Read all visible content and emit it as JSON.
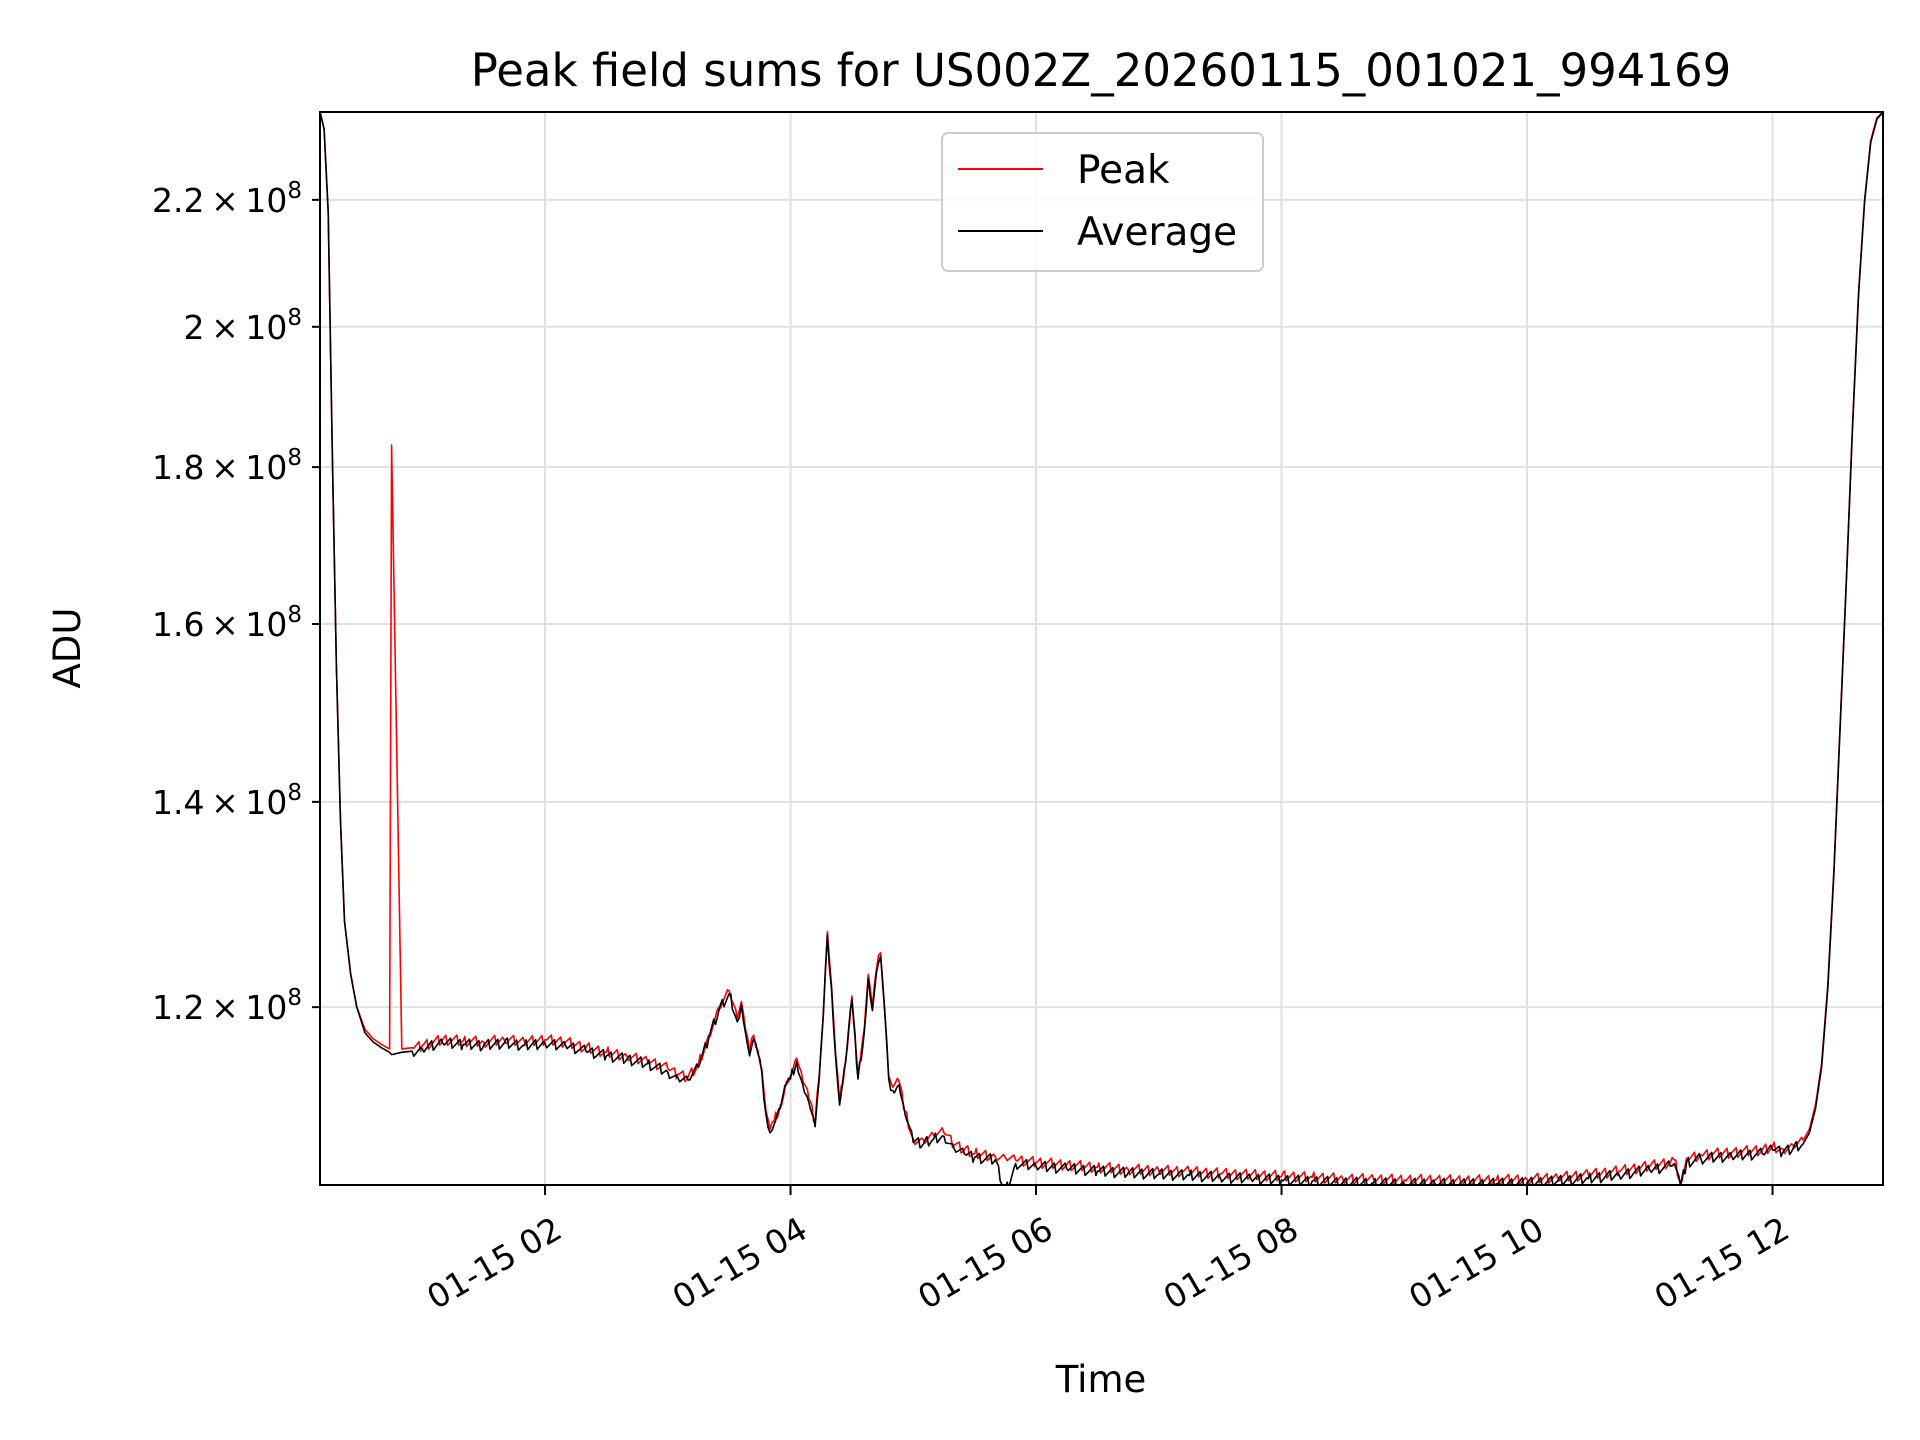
{
  "chart_data": {
    "type": "line",
    "title": "Peak field sums for US002Z_20260115_001021_994169",
    "xlabel": "Time",
    "ylabel": "ADU",
    "grid": true,
    "legend_position": "top-center",
    "y_scale": "log",
    "x_date_prefix": "2026-01-15",
    "xlim": [
      "00:10",
      "12:54"
    ],
    "ylim": [
      105000000,
      235000000
    ],
    "x_ticks": [
      "01-15 02",
      "01-15 04",
      "01-15 06",
      "01-15 08",
      "01-15 10",
      "01-15 12"
    ],
    "x_tick_hours": [
      2,
      4,
      6,
      8,
      10,
      12
    ],
    "y_ticks": [
      {
        "value": 120000000,
        "mantissa": "1.2",
        "exponent": "8"
      },
      {
        "value": 140000000,
        "mantissa": "1.4",
        "exponent": "8"
      },
      {
        "value": 160000000,
        "mantissa": "1.6",
        "exponent": "8"
      },
      {
        "value": 180000000,
        "mantissa": "1.8",
        "exponent": "8"
      },
      {
        "value": 200000000,
        "mantissa": "2",
        "exponent": "8"
      },
      {
        "value": 220000000,
        "mantissa": "2.2",
        "exponent": "8"
      }
    ],
    "x": [
      "00:10",
      "00:12",
      "00:14",
      "00:16",
      "00:18",
      "00:20",
      "00:22",
      "00:25",
      "00:28",
      "00:32",
      "00:36",
      "00:40",
      "00:44",
      "00:45",
      "00:50",
      "00:55",
      "01:00",
      "01:10",
      "01:20",
      "01:30",
      "01:40",
      "01:50",
      "02:00",
      "02:10",
      "02:20",
      "02:30",
      "02:40",
      "02:50",
      "03:00",
      "03:05",
      "03:10",
      "03:15",
      "03:20",
      "03:25",
      "03:30",
      "03:34",
      "03:36",
      "03:38",
      "03:40",
      "03:42",
      "03:44",
      "03:46",
      "03:48",
      "03:50",
      "03:52",
      "03:55",
      "03:58",
      "04:00",
      "04:03",
      "04:06",
      "04:09",
      "04:12",
      "04:14",
      "04:16",
      "04:18",
      "04:20",
      "04:22",
      "04:24",
      "04:27",
      "04:30",
      "04:33",
      "04:36",
      "04:38",
      "04:40",
      "04:42",
      "04:44",
      "04:46",
      "04:48",
      "04:50",
      "04:53",
      "04:56",
      "05:00",
      "05:05",
      "05:10",
      "05:15",
      "05:20",
      "05:25",
      "05:30",
      "05:40",
      "05:45",
      "05:50",
      "06:00",
      "06:15",
      "06:30",
      "06:45",
      "07:00",
      "07:15",
      "07:30",
      "07:45",
      "08:00",
      "08:15",
      "08:30",
      "08:45",
      "09:00",
      "09:15",
      "09:30",
      "09:45",
      "10:00",
      "10:15",
      "10:30",
      "10:45",
      "11:00",
      "11:10",
      "11:12",
      "11:15",
      "11:18",
      "11:25",
      "11:40",
      "11:55",
      "12:00",
      "12:05",
      "12:10",
      "12:15",
      "12:18",
      "12:21",
      "12:24",
      "12:27",
      "12:30",
      "12:33",
      "12:36",
      "12:39",
      "12:42",
      "12:45",
      "12:48",
      "12:51",
      "12:54"
    ],
    "series": [
      {
        "name": "Peak",
        "color": "#ff0000",
        "values": [
          235000000,
          232000000,
          218000000,
          182000000,
          155000000,
          138000000,
          128000000,
          123000000,
          120000000,
          118000000,
          117200000,
          116700000,
          116300000,
          183000000,
          116300000,
          116400000,
          116600000,
          117100000,
          117000000,
          116900000,
          117100000,
          116900000,
          117100000,
          116900000,
          116400000,
          116000000,
          115700000,
          115300000,
          114600000,
          114100000,
          113900000,
          115000000,
          117500000,
          120000000,
          121500000,
          119000000,
          120500000,
          118000000,
          116000000,
          117500000,
          116200000,
          114500000,
          111000000,
          109500000,
          110200000,
          111500000,
          113500000,
          114000000,
          115500000,
          113500000,
          112000000,
          110000000,
          114000000,
          119500000,
          127000000,
          122000000,
          116000000,
          111800000,
          115500000,
          121000000,
          114000000,
          118000000,
          123000000,
          120000000,
          123500000,
          125000000,
          120000000,
          114000000,
          113000000,
          113500000,
          111000000,
          108700000,
          108600000,
          109000000,
          109200000,
          108200000,
          107800000,
          107500000,
          107300000,
          107200000,
          107000000,
          106800000,
          106600000,
          106400000,
          106250000,
          106150000,
          106050000,
          105900000,
          105800000,
          105700000,
          105600000,
          105500000,
          105450000,
          105400000,
          105400000,
          105350000,
          105400000,
          105450000,
          105600000,
          105800000,
          106100000,
          106500000,
          106800000,
          107000000,
          105200000,
          107100000,
          107400000,
          107600000,
          107800000,
          108100000,
          107900000,
          108200000,
          108600000,
          109500000,
          111500000,
          115000000,
          122000000,
          133000000,
          148000000,
          165000000,
          185000000,
          205000000,
          220000000,
          230000000,
          234000000,
          235000000
        ]
      },
      {
        "name": "Average",
        "color": "#000000",
        "values": [
          235000000,
          232000000,
          218000000,
          182000000,
          155000000,
          138000000,
          128000000,
          123000000,
          120000000,
          117700000,
          116900000,
          116400000,
          116000000,
          115800000,
          116000000,
          116100000,
          116300000,
          116800000,
          116700000,
          116600000,
          116800000,
          116600000,
          116800000,
          116600000,
          116100000,
          115700000,
          115400000,
          115000000,
          114300000,
          113800000,
          113600000,
          114700000,
          117200000,
          119700000,
          121200000,
          118700000,
          120200000,
          117700000,
          115700000,
          117200000,
          115900000,
          114200000,
          110700000,
          109200000,
          109900000,
          111200000,
          113200000,
          113700000,
          115200000,
          113200000,
          111700000,
          109700000,
          113700000,
          119200000,
          126700000,
          121700000,
          115700000,
          111500000,
          115200000,
          120700000,
          113700000,
          117700000,
          122700000,
          119700000,
          123200000,
          124700000,
          119700000,
          113700000,
          112700000,
          113200000,
          110700000,
          108400000,
          108300000,
          108700000,
          108900000,
          107900000,
          107500000,
          107200000,
          107000000,
          104500000,
          106700000,
          106500000,
          106300000,
          106100000,
          105950000,
          105850000,
          105750000,
          105600000,
          105500000,
          105400000,
          105300000,
          105200000,
          105150000,
          105100000,
          105100000,
          105050000,
          105100000,
          105150000,
          105300000,
          105500000,
          105800000,
          106200000,
          106500000,
          106700000,
          104900000,
          106800000,
          107100000,
          107300000,
          107500000,
          107800000,
          107600000,
          107900000,
          108300000,
          109200000,
          111200000,
          114700000,
          121700000,
          132700000,
          147700000,
          164700000,
          184700000,
          204700000,
          219700000,
          229700000,
          233700000,
          235000000
        ]
      }
    ]
  }
}
